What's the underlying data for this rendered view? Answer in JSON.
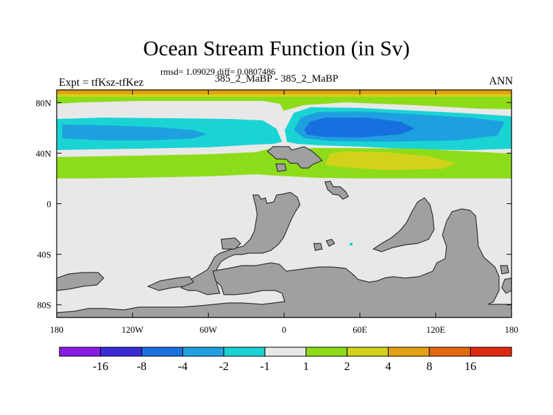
{
  "chart_data": {
    "type": "heatmap",
    "title": "Ocean Stream Function (in Sv)",
    "stats_text": "rmsd= 1.09029 diff= 0.0807486",
    "subtitle": "385_2_MaBP - 385_2_MaBP",
    "left_label": "Expt = tfKsz-tfKez",
    "right_label": "ANN",
    "x_range": [
      -180,
      180
    ],
    "y_range": [
      -90,
      90
    ],
    "x_ticks": [
      {
        "value": -180,
        "label": "180"
      },
      {
        "value": -120,
        "label": "120W"
      },
      {
        "value": -60,
        "label": "60W"
      },
      {
        "value": 0,
        "label": "0"
      },
      {
        "value": 60,
        "label": "60E"
      },
      {
        "value": 120,
        "label": "120E"
      },
      {
        "value": 180,
        "label": "180"
      }
    ],
    "y_ticks": [
      {
        "value": 80,
        "label": "80N"
      },
      {
        "value": 40,
        "label": "40N"
      },
      {
        "value": 0,
        "label": "0"
      },
      {
        "value": -40,
        "label": "40S"
      },
      {
        "value": -80,
        "label": "80S"
      }
    ],
    "colorbar": {
      "colors": [
        "#8a1be6",
        "#3a2bd6",
        "#1870e0",
        "#1ea0e0",
        "#1ad4d4",
        "#e8e8e8",
        "#8ddc1a",
        "#d2d21a",
        "#e3a012",
        "#e36a0f",
        "#e02a10"
      ],
      "labels": [
        "-16",
        "-8",
        "-4",
        "-2",
        "-1",
        "1",
        "2",
        "4",
        "8",
        "16"
      ]
    },
    "land_color": "#a0a0a0",
    "neutral_color": "#e8e8e8",
    "regions": [
      {
        "name": "arctic-orange-band",
        "level": "4 to 8",
        "lon": [
          -180,
          180
        ],
        "lat": [
          86,
          90
        ]
      },
      {
        "name": "arctic-yellow-band",
        "level": "2 to 4",
        "lon": [
          -180,
          180
        ],
        "lat": [
          85,
          86.5
        ]
      },
      {
        "name": "north-green-band",
        "level": "1 to 2",
        "lon": [
          -180,
          180
        ],
        "lat": [
          78,
          85
        ]
      },
      {
        "name": "atlantic-cyan-cell",
        "level": "-2 to -1",
        "lon": [
          -180,
          -10
        ],
        "lat": [
          50,
          70
        ]
      },
      {
        "name": "atlantic-blue-cell",
        "level": "-4 to -2",
        "lon": [
          -175,
          -40
        ],
        "lat": [
          55,
          65
        ]
      },
      {
        "name": "pacific-cyan-cell",
        "level": "-2 to -1",
        "lon": [
          10,
          180
        ],
        "lat": [
          45,
          77
        ]
      },
      {
        "name": "pacific-blue-cell",
        "level": "-4 to -2",
        "lon": [
          12,
          170
        ],
        "lat": [
          49,
          73
        ]
      },
      {
        "name": "pacific-dark-blue-core",
        "level": "-8 to -4",
        "lon": [
          18,
          105
        ],
        "lat": [
          55,
          68
        ]
      },
      {
        "name": "midlat-green-band",
        "level": "1 to 2",
        "lon": [
          -180,
          180
        ],
        "lat": [
          20,
          40
        ]
      },
      {
        "name": "midlat-yellow-cell",
        "level": "2 to 4",
        "lon": [
          35,
          135
        ],
        "lat": [
          28,
          42
        ]
      },
      {
        "name": "point-cyan-patch",
        "level": "-2 to -1",
        "lon": [
          52,
          54
        ],
        "lat": [
          -32,
          -30
        ]
      }
    ]
  }
}
